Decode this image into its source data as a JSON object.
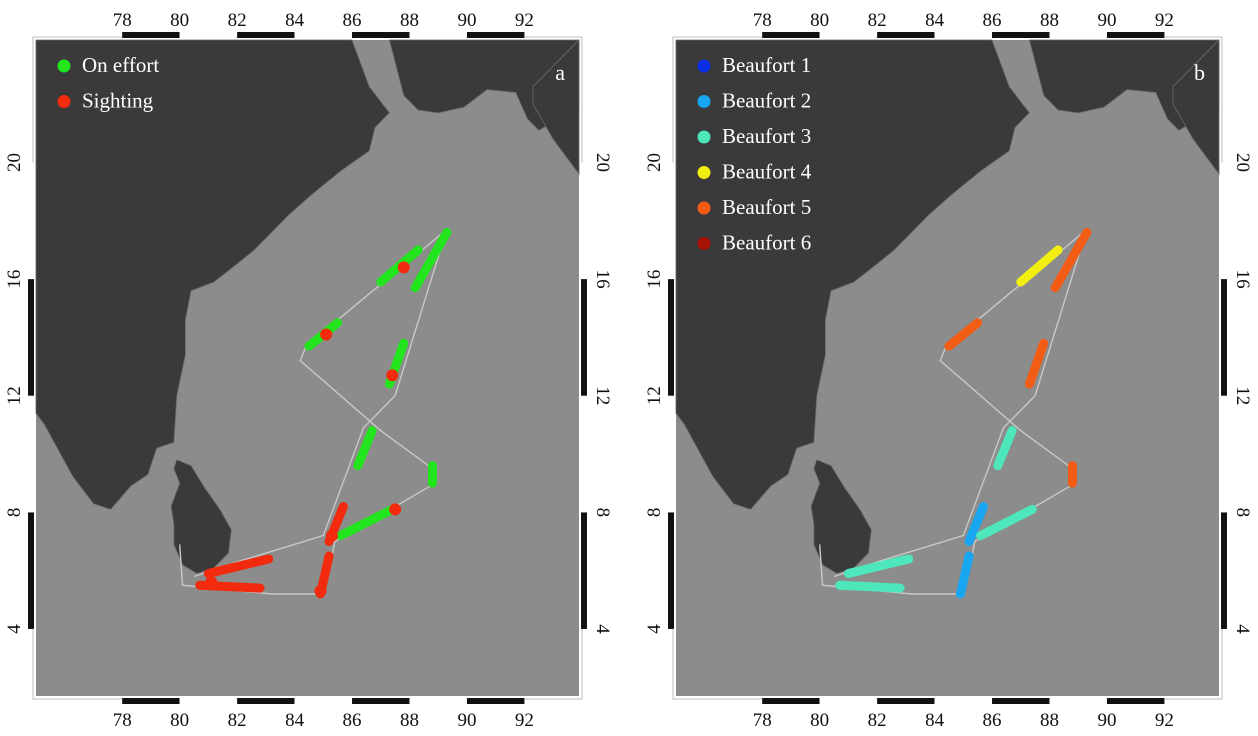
{
  "colors": {
    "land": "#3a3a3a",
    "sea": "#8c8c8c",
    "track": "#c8c8c8",
    "frame_dark": "#111111",
    "on_effort": "#22e51e",
    "sighting": "#f22b0e",
    "beaufort_1": "#0a2ee6",
    "beaufort_2": "#19a6f0",
    "beaufort_3": "#4ee6bb",
    "beaufort_4": "#f2ee12",
    "beaufort_5": "#f25c14",
    "beaufort_6": "#a81208"
  },
  "axes": {
    "lon_range": [
      75,
      93.9
    ],
    "lat_range": [
      1.7,
      24.2
    ],
    "lon_ticks": [
      "78",
      "80",
      "82",
      "84",
      "86",
      "88",
      "90",
      "92"
    ],
    "lon_tick_values": [
      78,
      80,
      82,
      84,
      86,
      88,
      90,
      92
    ],
    "lat_ticks": [
      "4",
      "8",
      "12",
      "16",
      "20"
    ],
    "lat_tick_values": [
      4,
      8,
      12,
      16,
      20
    ]
  },
  "panels": [
    {
      "letter": "a",
      "legend": [
        {
          "label": "On effort",
          "color_key": "on_effort"
        },
        {
          "label": "Sighting",
          "color_key": "sighting"
        }
      ]
    },
    {
      "letter": "b",
      "legend": [
        {
          "label": "Beaufort 1",
          "color_key": "beaufort_1"
        },
        {
          "label": "Beaufort 2",
          "color_key": "beaufort_2"
        },
        {
          "label": "Beaufort 3",
          "color_key": "beaufort_3"
        },
        {
          "label": "Beaufort 4",
          "color_key": "beaufort_4"
        },
        {
          "label": "Beaufort 5",
          "color_key": "beaufort_5"
        },
        {
          "label": "Beaufort 6",
          "color_key": "beaufort_6"
        }
      ]
    }
  ],
  "ship_track": [
    [
      80.0,
      6.9
    ],
    [
      80.1,
      5.5
    ],
    [
      83.2,
      5.2
    ],
    [
      84.9,
      5.2
    ],
    [
      85.3,
      6.5
    ],
    [
      85.4,
      7.0
    ],
    [
      88.9,
      9.0
    ],
    [
      88.8,
      9.5
    ],
    [
      87.0,
      10.8
    ],
    [
      84.2,
      13.2
    ],
    [
      84.4,
      13.7
    ],
    [
      89.3,
      17.7
    ],
    [
      87.5,
      12.0
    ],
    [
      86.4,
      10.9
    ],
    [
      85.0,
      7.2
    ],
    [
      82.0,
      6.3
    ],
    [
      80.5,
      5.8
    ]
  ],
  "effort_segments": [
    {
      "from": [
        80.7,
        5.5
      ],
      "to": [
        82.8,
        5.4
      ],
      "status": "sighting",
      "beaufort": 3
    },
    {
      "from": [
        81.0,
        5.9
      ],
      "to": [
        83.1,
        6.4
      ],
      "status": "sighting",
      "beaufort": 3
    },
    {
      "from": [
        84.9,
        5.2
      ],
      "to": [
        85.2,
        6.5
      ],
      "status": "sighting",
      "beaufort": 2
    },
    {
      "from": [
        85.2,
        7.0
      ],
      "to": [
        85.7,
        8.2
      ],
      "status": "sighting",
      "beaufort": 2
    },
    {
      "from": [
        85.6,
        7.2
      ],
      "to": [
        87.4,
        8.1
      ],
      "status": "on_effort",
      "beaufort": 3
    },
    {
      "from": [
        88.8,
        9.0
      ],
      "to": [
        88.8,
        9.6
      ],
      "status": "on_effort",
      "beaufort": 5
    },
    {
      "from": [
        86.2,
        9.6
      ],
      "to": [
        86.7,
        10.8
      ],
      "status": "on_effort",
      "beaufort": 3
    },
    {
      "from": [
        87.3,
        12.4
      ],
      "to": [
        87.8,
        13.8
      ],
      "status": "on_effort",
      "beaufort": 5
    },
    {
      "from": [
        88.2,
        15.7
      ],
      "to": [
        89.3,
        17.6
      ],
      "status": "on_effort",
      "beaufort": 5
    },
    {
      "from": [
        84.5,
        13.7
      ],
      "to": [
        85.5,
        14.5
      ],
      "status": "on_effort",
      "beaufort": 5
    },
    {
      "from": [
        87.0,
        15.9
      ],
      "to": [
        88.3,
        17.0
      ],
      "status": "on_effort",
      "beaufort": 4
    }
  ],
  "sighting_points": [
    [
      81.1,
      5.6
    ],
    [
      84.9,
      5.3
    ],
    [
      85.3,
      7.2
    ],
    [
      87.5,
      8.1
    ],
    [
      87.4,
      12.7
    ],
    [
      87.8,
      16.4
    ],
    [
      85.1,
      14.1
    ]
  ]
}
